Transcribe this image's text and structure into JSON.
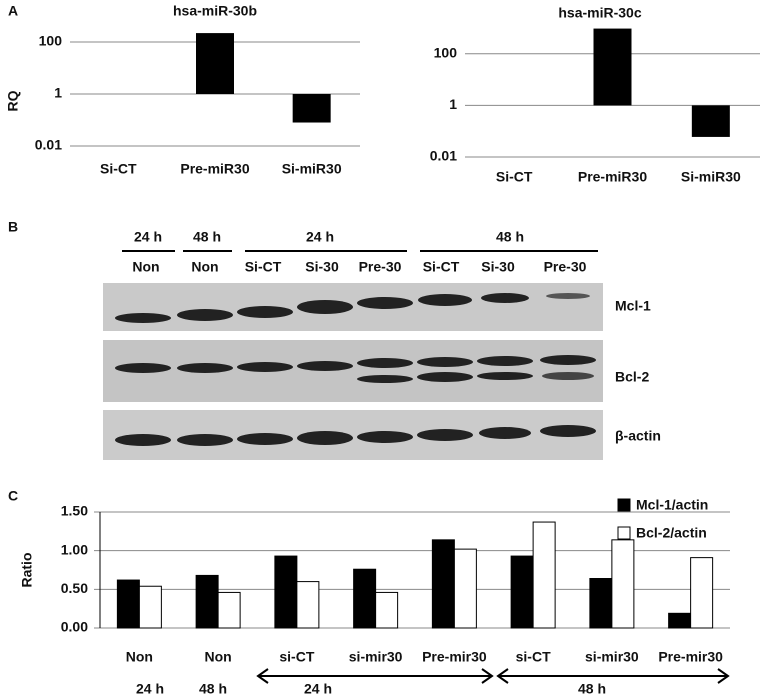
{
  "panel_labels": [
    "A",
    "B",
    "C"
  ],
  "chart_data": [
    {
      "type": "bar",
      "title": "hsa-miR-30b",
      "y_label": "RQ",
      "categories": [
        "Si-CT",
        "Pre-miR30",
        "Si-miR30"
      ],
      "values": [
        1,
        220,
        0.08
      ],
      "color": "#000000",
      "log_scale": true,
      "ylim": [
        0.01,
        1000
      ],
      "yticks": [
        0.01,
        1,
        100
      ],
      "grid": true
    },
    {
      "type": "bar",
      "title": "hsa-miR-30c",
      "categories": [
        "Si-CT",
        "Pre-miR30",
        "Si-miR30"
      ],
      "values": [
        1,
        950,
        0.06
      ],
      "color": "#000000",
      "log_scale": true,
      "ylim": [
        0.01,
        1000
      ],
      "yticks": [
        0.01,
        1,
        100
      ],
      "grid": true
    },
    {
      "type": "grouped_bar",
      "y_label": "Ratio",
      "categories": [
        "Non",
        "Non",
        "si-CT",
        "si-mir30",
        "Pre-mir30",
        "si-CT",
        "si-mir30",
        "Pre-mir30"
      ],
      "series": [
        {
          "name": "Mcl-1/actin",
          "color": "#000000",
          "values": [
            0.62,
            0.68,
            0.93,
            0.76,
            1.14,
            0.93,
            0.64,
            0.19
          ]
        },
        {
          "name": "Bcl-2/actin",
          "color": "#ffffff",
          "values": [
            0.54,
            0.46,
            0.6,
            0.46,
            1.02,
            1.37,
            1.14,
            0.91
          ]
        }
      ],
      "ylim": [
        0,
        1.5
      ],
      "yticks": [
        {
          "value": 0,
          "label": "0.00"
        },
        {
          "value": 0.5,
          "label": "0.50"
        },
        {
          "value": 1,
          "label": "1.00"
        },
        {
          "value": 1.5,
          "label": "1.50"
        }
      ],
      "grid": true,
      "legend": "top-right",
      "time_labels": [
        "24 h",
        "48 h",
        "24 h",
        "48 h"
      ]
    }
  ],
  "blot": {
    "time_headers": [
      "24 h",
      "48 h",
      "24 h",
      "48 h"
    ],
    "lanes": [
      "Non",
      "Non",
      "Si-CT",
      "Si-30",
      "Pre-30",
      "Si-CT",
      "Si-30",
      "Pre-30"
    ],
    "proteins": [
      "Mcl-1",
      "Bcl-2",
      "β-actin"
    ]
  }
}
